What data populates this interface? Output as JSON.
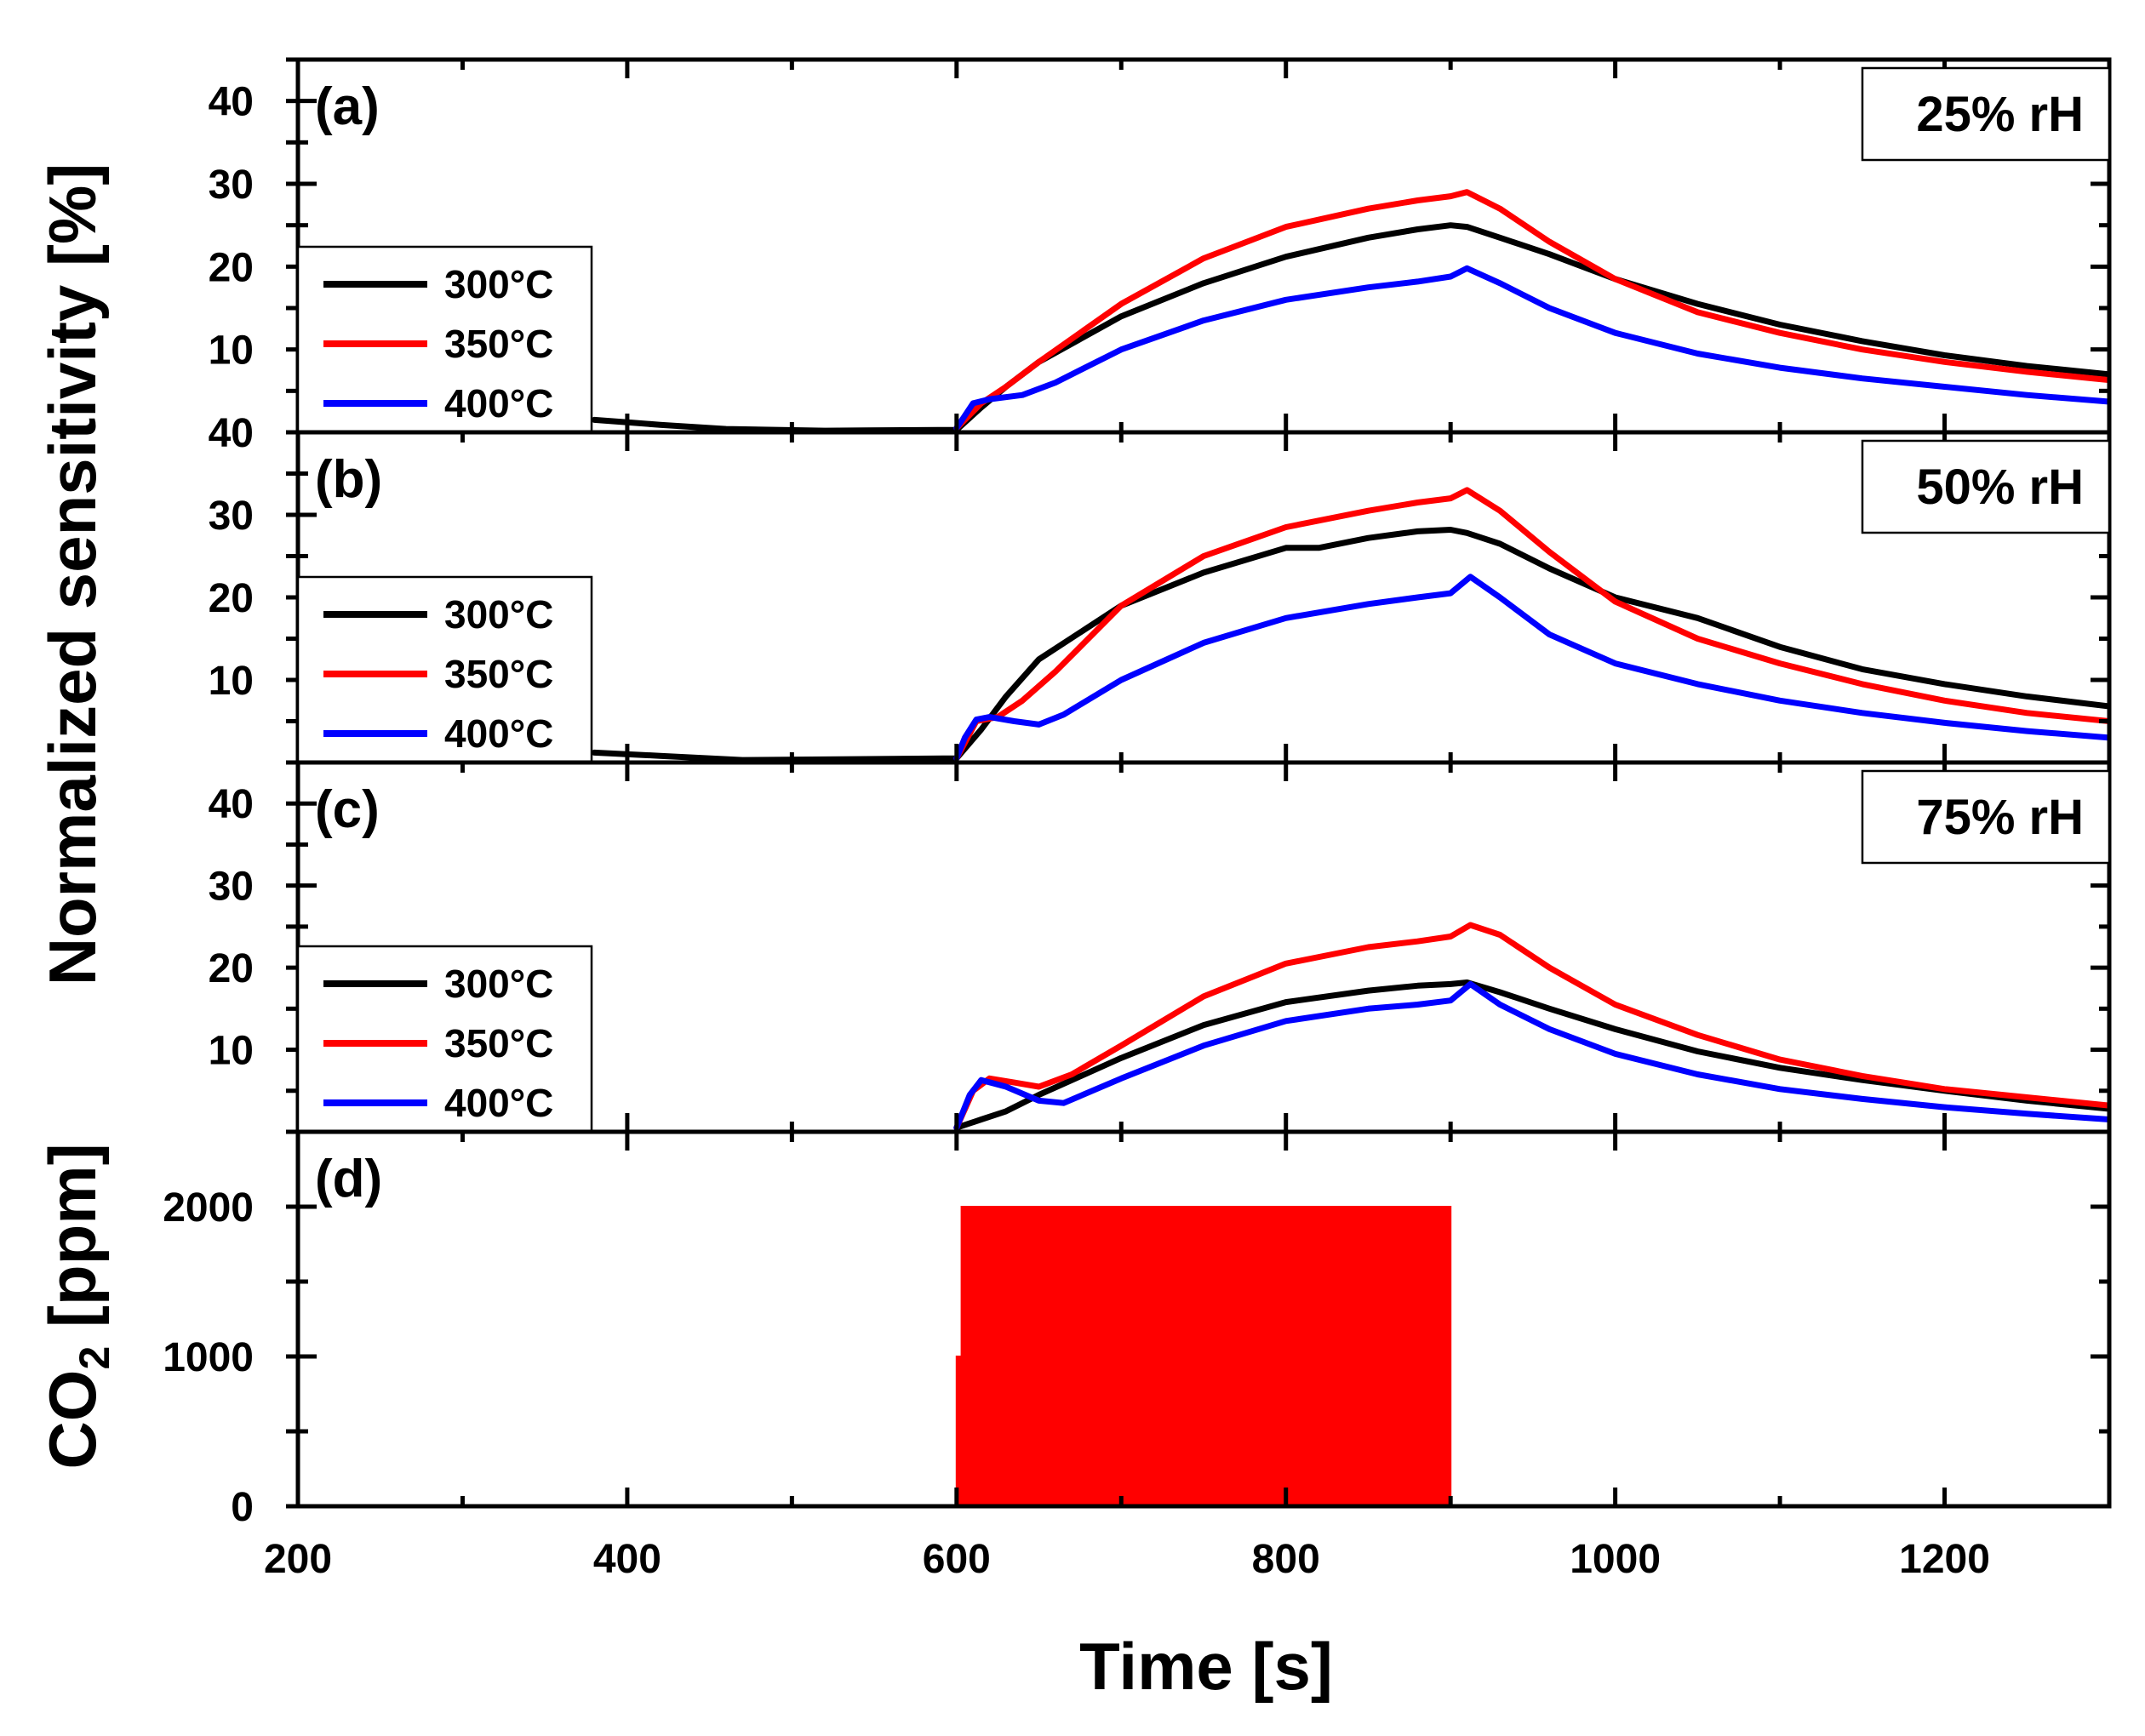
{
  "chart_data": [
    {
      "type": "line",
      "panel_label": "(a)",
      "condition": "25% rH",
      "xlim": [
        200,
        1300
      ],
      "ylim": [
        0,
        45
      ],
      "yticks": [
        10,
        20,
        30,
        40
      ],
      "legend": {
        "placement": "left",
        "entries": [
          "300°C",
          "350°C",
          "400°C"
        ]
      },
      "series": [
        {
          "name": "300°C",
          "color": "#000000",
          "x": [
            380,
            400,
            420,
            460,
            520,
            600,
            615,
            630,
            650,
            700,
            750,
            800,
            850,
            880,
            900,
            910,
            930,
            960,
            1000,
            1050,
            1100,
            1150,
            1200,
            1250,
            1300
          ],
          "y": [
            1.5,
            1.2,
            0.9,
            0.4,
            0.2,
            0.3,
            3,
            5.5,
            8.5,
            14,
            18,
            21.2,
            23.5,
            24.5,
            25,
            24.8,
            23.5,
            21.5,
            18.5,
            15.5,
            13,
            11,
            9.3,
            8,
            7
          ]
        },
        {
          "name": "350°C",
          "color": "#ff0000",
          "x": [
            600,
            615,
            630,
            650,
            700,
            750,
            800,
            850,
            880,
            900,
            910,
            930,
            960,
            1000,
            1050,
            1100,
            1150,
            1200,
            1250,
            1300
          ],
          "y": [
            0.5,
            3.5,
            5.5,
            8.5,
            15.5,
            21,
            24.8,
            27,
            28,
            28.5,
            29,
            27,
            23,
            18.5,
            14.5,
            12,
            10,
            8.5,
            7.3,
            6.3
          ]
        },
        {
          "name": "400°C",
          "color": "#0000ff",
          "x": [
            600,
            605,
            610,
            620,
            640,
            660,
            700,
            750,
            800,
            850,
            880,
            900,
            910,
            930,
            960,
            1000,
            1050,
            1100,
            1150,
            1200,
            1250,
            1300
          ],
          "y": [
            0.5,
            2,
            3.5,
            4,
            4.5,
            6,
            10,
            13.5,
            16,
            17.5,
            18.2,
            18.8,
            19.8,
            18,
            15,
            12,
            9.5,
            7.8,
            6.5,
            5.5,
            4.5,
            3.7
          ]
        }
      ]
    },
    {
      "type": "line",
      "panel_label": "(b)",
      "condition": "50% rH",
      "xlim": [
        200,
        1300
      ],
      "ylim": [
        0,
        40
      ],
      "yticks": [
        10,
        20,
        30,
        40
      ],
      "legend": {
        "placement": "left",
        "entries": [
          "300°C",
          "350°C",
          "400°C"
        ]
      },
      "series": [
        {
          "name": "300°C",
          "color": "#000000",
          "x": [
            380,
            420,
            470,
            600,
            615,
            630,
            650,
            700,
            750,
            800,
            820,
            850,
            880,
            900,
            910,
            930,
            960,
            1000,
            1050,
            1100,
            1150,
            1200,
            1250,
            1300
          ],
          "y": [
            1.2,
            0.8,
            0.3,
            0.5,
            4,
            8,
            12.5,
            19,
            23,
            26,
            26,
            27.2,
            28,
            28.2,
            27.8,
            26.5,
            23.5,
            20,
            17.5,
            14,
            11.3,
            9.5,
            8,
            6.8
          ]
        },
        {
          "name": "350°C",
          "color": "#ff0000",
          "x": [
            600,
            612,
            625,
            640,
            660,
            700,
            750,
            800,
            850,
            880,
            900,
            910,
            930,
            960,
            1000,
            1050,
            1100,
            1150,
            1200,
            1250,
            1300
          ],
          "y": [
            0.5,
            5,
            5.5,
            7.5,
            11,
            19,
            25,
            28.5,
            30.5,
            31.5,
            32,
            33,
            30.5,
            25.5,
            19.5,
            15,
            12,
            9.5,
            7.5,
            6,
            5
          ]
        },
        {
          "name": "400°C",
          "color": "#0000ff",
          "x": [
            600,
            605,
            612,
            620,
            635,
            650,
            665,
            700,
            750,
            800,
            850,
            880,
            900,
            912,
            930,
            960,
            1000,
            1050,
            1100,
            1150,
            1200,
            1250,
            1300
          ],
          "y": [
            0.5,
            3,
            5.2,
            5.5,
            5,
            4.6,
            5.8,
            10,
            14.5,
            17.5,
            19.2,
            20,
            20.5,
            22.5,
            20,
            15.5,
            12,
            9.5,
            7.5,
            6,
            4.8,
            3.8,
            3
          ]
        }
      ]
    },
    {
      "type": "line",
      "panel_label": "(c)",
      "condition": "75% rH",
      "xlim": [
        200,
        1300
      ],
      "ylim": [
        0,
        45
      ],
      "yticks": [
        10,
        20,
        30,
        40
      ],
      "legend": {
        "placement": "left",
        "entries": [
          "300°C",
          "350°C",
          "400°C"
        ]
      },
      "series": [
        {
          "name": "300°C",
          "color": "#000000",
          "x": [
            600,
            615,
            630,
            650,
            700,
            750,
            800,
            850,
            880,
            900,
            910,
            930,
            960,
            1000,
            1050,
            1100,
            1150,
            1200,
            1250,
            1300
          ],
          "y": [
            0.5,
            1.5,
            2.5,
            4.5,
            9,
            13,
            15.8,
            17.2,
            17.8,
            18,
            18.2,
            17,
            15,
            12.5,
            9.8,
            7.8,
            6.3,
            5,
            3.8,
            2.8
          ]
        },
        {
          "name": "350°C",
          "color": "#ff0000",
          "x": [
            600,
            610,
            620,
            635,
            650,
            670,
            700,
            750,
            800,
            850,
            880,
            900,
            912,
            930,
            960,
            1000,
            1050,
            1100,
            1150,
            1200,
            1250,
            1300
          ],
          "y": [
            0.5,
            5,
            6.5,
            6,
            5.5,
            7,
            10.5,
            16.5,
            20.5,
            22.5,
            23.2,
            23.8,
            25.2,
            24,
            20,
            15.5,
            11.8,
            8.8,
            6.8,
            5.2,
            4.2,
            3.2
          ]
        },
        {
          "name": "400°C",
          "color": "#0000ff",
          "x": [
            600,
            608,
            615,
            630,
            650,
            665,
            700,
            750,
            800,
            850,
            880,
            900,
            912,
            930,
            960,
            1000,
            1050,
            1100,
            1150,
            1200,
            1250,
            1300
          ],
          "y": [
            0.5,
            4.5,
            6.3,
            5.5,
            3.8,
            3.5,
            6.5,
            10.5,
            13.5,
            15,
            15.5,
            16,
            18,
            15.5,
            12.5,
            9.5,
            7,
            5.2,
            4,
            3,
            2.2,
            1.5
          ]
        }
      ]
    },
    {
      "type": "area",
      "panel_label": "(d)",
      "xlim": [
        200,
        1300
      ],
      "ylim": [
        0,
        2500
      ],
      "yticks": [
        0,
        1000,
        2000
      ],
      "xticks": [
        200,
        400,
        600,
        800,
        1000,
        1200
      ],
      "xlabel": "Time [s]",
      "ylabel_main": "CO",
      "ylabel_sub": "2",
      "ylabel_unit": " [ppm]",
      "series": [
        {
          "name": "CO2",
          "color": "#ff0000",
          "x": [
            600,
            600,
            603,
            603,
            900,
            900
          ],
          "y": [
            0,
            1000,
            1000,
            2000,
            2000,
            0
          ]
        }
      ]
    }
  ],
  "shared_ylabel": "Normalized sensitivity [%]"
}
